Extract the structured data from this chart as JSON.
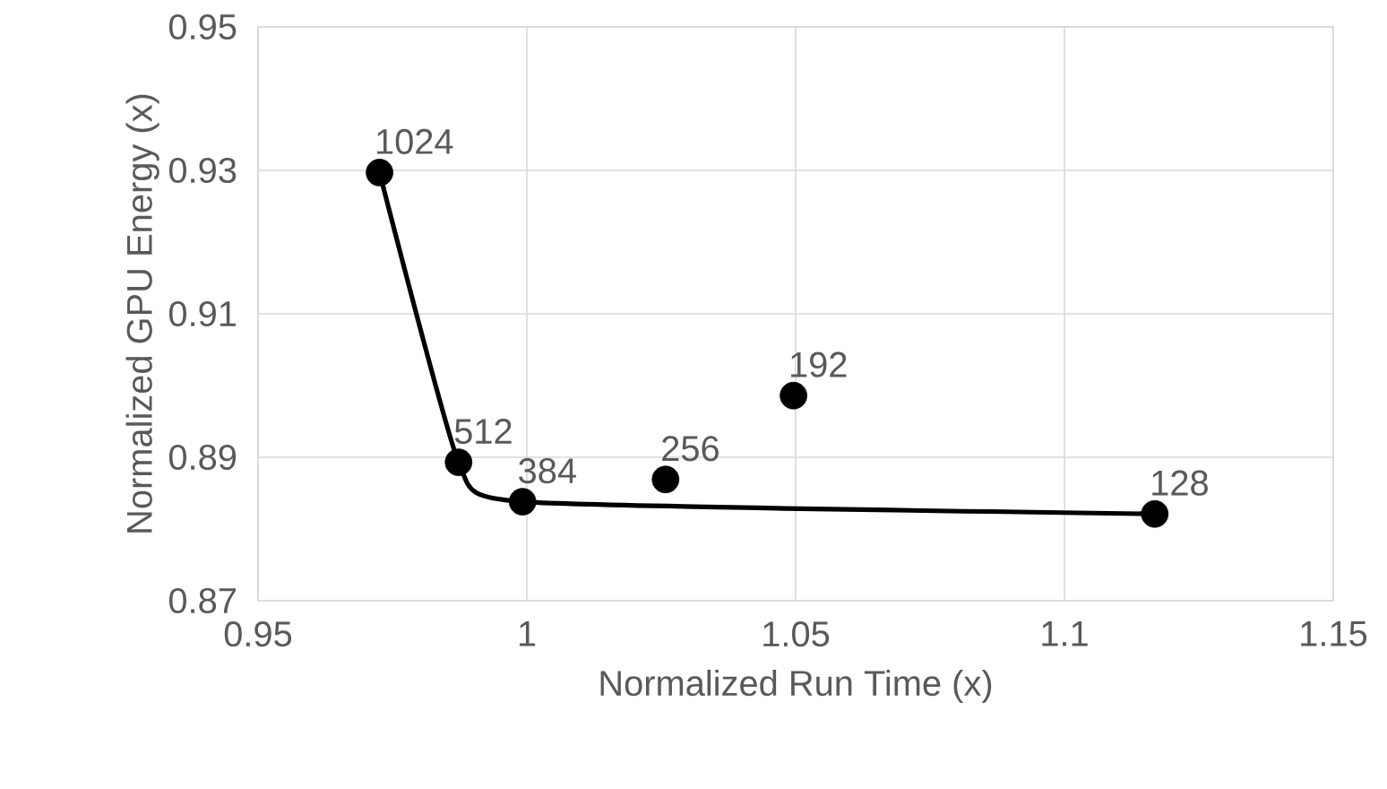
{
  "chart_data": {
    "type": "scatter",
    "xlabel": "Normalized Run Time (x)",
    "ylabel": "Normalized GPU Energy (x)",
    "series": [
      {
        "color": "#000000",
        "marker": "circle",
        "x": [
          0.9726,
          0.9873,
          0.9992,
          1.0258,
          1.0496,
          1.1168
        ],
        "values": [
          0.9297,
          0.8893,
          0.8838,
          0.8869,
          0.8986,
          0.8821
        ]
      },
      {
        "type": "line",
        "color": "#000000",
        "marker": "none",
        "line_style": "solid",
        "x": [
          0.9726,
          0.9873,
          0.9992,
          1.1168
        ],
        "values": [
          0.9297,
          0.8893,
          0.8838,
          0.8821
        ]
      }
    ],
    "annotations": [
      {
        "text": "1024",
        "x": 0.9726,
        "y": 0.9297
      },
      {
        "text": "512",
        "x": 0.9873,
        "y": 0.8893
      },
      {
        "text": "384",
        "x": 0.9992,
        "y": 0.8838
      },
      {
        "text": "256",
        "x": 1.0258,
        "y": 0.8869
      },
      {
        "text": "192",
        "x": 1.0496,
        "y": 0.8986
      },
      {
        "text": "128",
        "x": 1.1168,
        "y": 0.8821
      }
    ],
    "xlim": [
      0.95,
      1.15
    ],
    "xticks": [
      0.95,
      1,
      1.05,
      1.1,
      1.15
    ],
    "ylim": [
      0.87,
      0.95
    ],
    "yticks": [
      0.87,
      0.89,
      0.91,
      0.93,
      0.95
    ],
    "grid": true
  }
}
